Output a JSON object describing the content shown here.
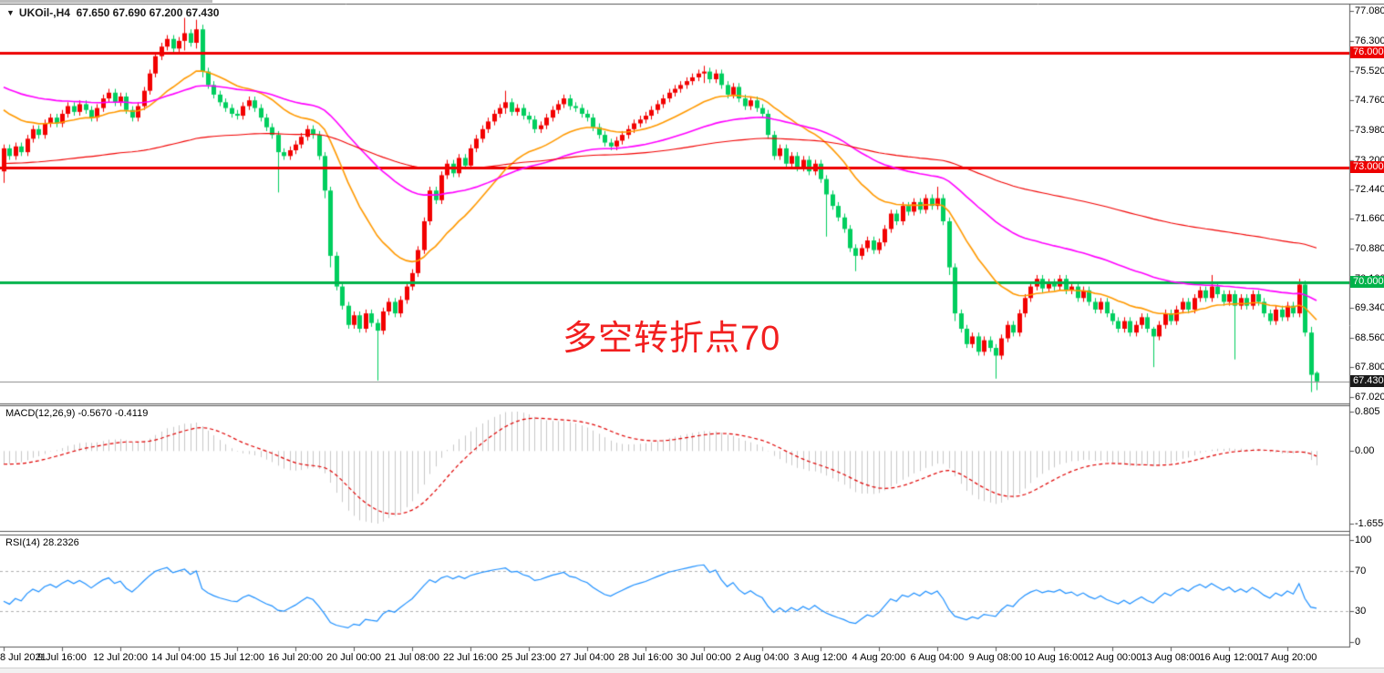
{
  "window": {
    "dropdown_icon": "▼",
    "symbol_period": "UKOil-,H4",
    "ohlc_line": "67.650 67.690 67.200 67.430"
  },
  "main_chart": {
    "axis_range": {
      "max": 77.08,
      "min": 67.02
    },
    "price_axis": [
      {
        "text": "77.080",
        "price": 77.08
      },
      {
        "text": "76.300",
        "price": 76.3
      },
      {
        "text": "75.520",
        "price": 75.52
      },
      {
        "text": "74.760",
        "price": 74.76
      },
      {
        "text": "73.980",
        "price": 73.98
      },
      {
        "text": "73.200",
        "price": 73.2
      },
      {
        "text": "72.440",
        "price": 72.44
      },
      {
        "text": "71.660",
        "price": 71.66
      },
      {
        "text": "70.880",
        "price": 70.88
      },
      {
        "text": "70.100",
        "price": 70.1
      },
      {
        "text": "69.340",
        "price": 69.34
      },
      {
        "text": "68.560",
        "price": 68.56
      },
      {
        "text": "67.800",
        "price": 67.8
      },
      {
        "text": "67.020",
        "price": 67.02
      }
    ],
    "hlines": [
      {
        "price": 76.0,
        "label": "76.000",
        "color": "#ed0000",
        "badge_bg": "#ed0000",
        "width": 3
      },
      {
        "price": 73.0,
        "label": "73.000",
        "color": "#ed0000",
        "badge_bg": "#ed0000",
        "width": 3
      },
      {
        "price": 70.0,
        "label": "70.000",
        "color": "#00b24a",
        "badge_bg": "#00b24a",
        "width": 3
      },
      {
        "price": 67.43,
        "label": "67.430",
        "color": "#8a8a8a",
        "badge_bg": "#1a1a1a",
        "width": 1
      }
    ],
    "annotation": {
      "text": "多空转折点70",
      "color": "#f21f1f"
    },
    "candles": {
      "up_color": "#f20000",
      "down_color": "#00ce5e",
      "first_open": 72.9,
      "closes": [
        73.5,
        73.3,
        73.55,
        73.4,
        73.75,
        74.0,
        73.85,
        74.15,
        74.3,
        74.15,
        74.4,
        74.6,
        74.45,
        74.65,
        74.5,
        74.3,
        74.55,
        74.8,
        74.95,
        74.7,
        74.85,
        74.5,
        74.3,
        74.6,
        75.0,
        75.45,
        75.9,
        76.15,
        76.35,
        76.1,
        76.3,
        76.5,
        76.25,
        76.6,
        75.5,
        75.15,
        74.9,
        74.7,
        74.55,
        74.4,
        74.35,
        74.6,
        74.75,
        74.55,
        74.3,
        74.05,
        73.85,
        73.4,
        73.3,
        73.45,
        73.6,
        73.8,
        74.0,
        73.85,
        73.3,
        72.4,
        70.7,
        69.9,
        69.4,
        68.9,
        69.15,
        68.8,
        69.2,
        68.95,
        68.75,
        69.25,
        69.5,
        69.2,
        69.55,
        69.9,
        70.25,
        70.85,
        71.6,
        72.4,
        72.15,
        72.8,
        73.1,
        72.85,
        73.25,
        73.05,
        73.5,
        73.75,
        74.0,
        74.2,
        74.4,
        74.55,
        74.7,
        74.45,
        74.55,
        74.35,
        74.25,
        74.0,
        74.1,
        74.3,
        74.5,
        74.65,
        74.8,
        74.6,
        74.55,
        74.4,
        74.3,
        74.05,
        73.85,
        73.65,
        73.55,
        73.7,
        73.85,
        74.0,
        74.15,
        74.25,
        74.35,
        74.5,
        74.65,
        74.8,
        74.95,
        75.05,
        75.15,
        75.25,
        75.35,
        75.45,
        75.5,
        75.3,
        75.45,
        75.15,
        74.9,
        75.1,
        74.8,
        74.6,
        74.75,
        74.55,
        74.4,
        73.85,
        73.3,
        73.5,
        73.1,
        73.3,
        73.0,
        73.2,
        72.9,
        73.1,
        72.7,
        72.3,
        72.0,
        71.7,
        71.4,
        70.9,
        70.7,
        70.9,
        71.1,
        70.85,
        71.05,
        71.4,
        71.8,
        71.6,
        72.0,
        71.85,
        72.1,
        71.9,
        72.2,
        72.0,
        72.2,
        71.6,
        70.4,
        69.2,
        68.8,
        68.4,
        68.6,
        68.2,
        68.5,
        68.3,
        68.1,
        68.55,
        68.9,
        68.7,
        69.2,
        69.6,
        69.9,
        70.1,
        69.85,
        70.0,
        69.9,
        70.1,
        69.8,
        69.9,
        69.6,
        69.8,
        69.5,
        69.3,
        69.5,
        69.2,
        69.0,
        68.8,
        69.0,
        68.7,
        68.9,
        69.1,
        68.8,
        68.6,
        68.9,
        69.2,
        69.0,
        69.3,
        69.5,
        69.3,
        69.6,
        69.8,
        69.6,
        69.9,
        69.7,
        69.5,
        69.7,
        69.4,
        69.6,
        69.4,
        69.7,
        69.5,
        69.2,
        69.0,
        69.3,
        69.1,
        69.4,
        69.2,
        69.95,
        68.7,
        67.6,
        67.43
      ],
      "overrides": {
        "0": [
          72.9,
          73.6,
          72.6,
          73.5
        ],
        "31": [
          76.3,
          76.9,
          76.05,
          76.5
        ],
        "33": [
          76.25,
          76.85,
          76.1,
          76.6
        ],
        "34": [
          76.6,
          76.72,
          75.35,
          75.5
        ],
        "47": [
          73.85,
          73.95,
          72.35,
          73.4
        ],
        "55": [
          73.3,
          73.4,
          72.2,
          72.4
        ],
        "56": [
          72.4,
          72.5,
          70.4,
          70.7
        ],
        "64": [
          68.95,
          69.05,
          67.45,
          68.75
        ],
        "86": [
          74.55,
          75.0,
          74.4,
          74.7
        ],
        "120": [
          75.45,
          75.65,
          75.2,
          75.5
        ],
        "141": [
          72.7,
          72.8,
          71.2,
          72.3
        ],
        "146": [
          70.9,
          71.0,
          70.3,
          70.7
        ],
        "160": [
          72.0,
          72.5,
          71.9,
          72.2
        ],
        "162": [
          71.6,
          71.7,
          70.2,
          70.4
        ],
        "163": [
          70.4,
          70.5,
          69.0,
          69.2
        ],
        "170": [
          68.3,
          68.4,
          67.5,
          68.1
        ],
        "197": [
          68.8,
          68.85,
          67.8,
          68.6
        ],
        "207": [
          69.6,
          70.2,
          69.5,
          69.9
        ],
        "211": [
          69.7,
          69.8,
          68.0,
          69.4
        ],
        "222": [
          69.2,
          70.1,
          69.1,
          69.95
        ],
        "224": [
          68.7,
          68.85,
          67.15,
          67.6
        ],
        "225": [
          67.65,
          67.69,
          67.2,
          67.43
        ]
      }
    },
    "ma": [
      {
        "period": 21,
        "color": "#ff9900",
        "width": 1.6,
        "seed": 74.6
      },
      {
        "period": 55,
        "color": "#ff00ff",
        "width": 1.6,
        "seed": 75.15
      },
      {
        "period": 150,
        "color": "#f20000",
        "width": 1.1,
        "seed": 73.1
      }
    ]
  },
  "macd": {
    "label": "MACD(12,26,9) -0.5670 -0.4119",
    "fast": 12,
    "slow": 26,
    "signal_period": 9,
    "hist_color": "#c8c8c8",
    "signal_color": "#e00000",
    "axis_labels": [
      "0.805",
      "0.00",
      "-1.6556"
    ]
  },
  "rsi": {
    "label": "RSI(14) 28.2326",
    "period": 14,
    "color": "#1e90ff",
    "levels": [
      70,
      30
    ],
    "axis_labels": [
      "100",
      "70",
      "30",
      "0"
    ],
    "axis_values": [
      100,
      70,
      30,
      0
    ]
  },
  "time_axis": {
    "labels": [
      {
        "text": "8 Jul 2021",
        "bar": 0
      },
      {
        "text": "9 Jul 16:00",
        "bar": 10
      },
      {
        "text": "12 Jul 20:00",
        "bar": 20
      },
      {
        "text": "14 Jul 04:00",
        "bar": 30
      },
      {
        "text": "15 Jul 12:00",
        "bar": 40
      },
      {
        "text": "16 Jul 20:00",
        "bar": 50
      },
      {
        "text": "20 Jul 00:00",
        "bar": 60
      },
      {
        "text": "21 Jul 08:00",
        "bar": 70
      },
      {
        "text": "22 Jul 16:00",
        "bar": 80
      },
      {
        "text": "25 Jul 23:00",
        "bar": 90
      },
      {
        "text": "27 Jul 04:00",
        "bar": 100
      },
      {
        "text": "28 Jul 16:00",
        "bar": 110
      },
      {
        "text": "30 Jul 00:00",
        "bar": 120
      },
      {
        "text": "2 Aug 04:00",
        "bar": 130
      },
      {
        "text": "3 Aug 12:00",
        "bar": 140
      },
      {
        "text": "4 Aug 20:00",
        "bar": 150
      },
      {
        "text": "6 Aug 04:00",
        "bar": 160
      },
      {
        "text": "9 Aug 08:00",
        "bar": 170
      },
      {
        "text": "10 Aug 16:00",
        "bar": 180
      },
      {
        "text": "12 Aug 00:00",
        "bar": 190
      },
      {
        "text": "13 Aug 08:00",
        "bar": 200
      },
      {
        "text": "16 Aug 12:00",
        "bar": 210
      },
      {
        "text": "17 Aug 20:00",
        "bar": 220
      }
    ]
  }
}
